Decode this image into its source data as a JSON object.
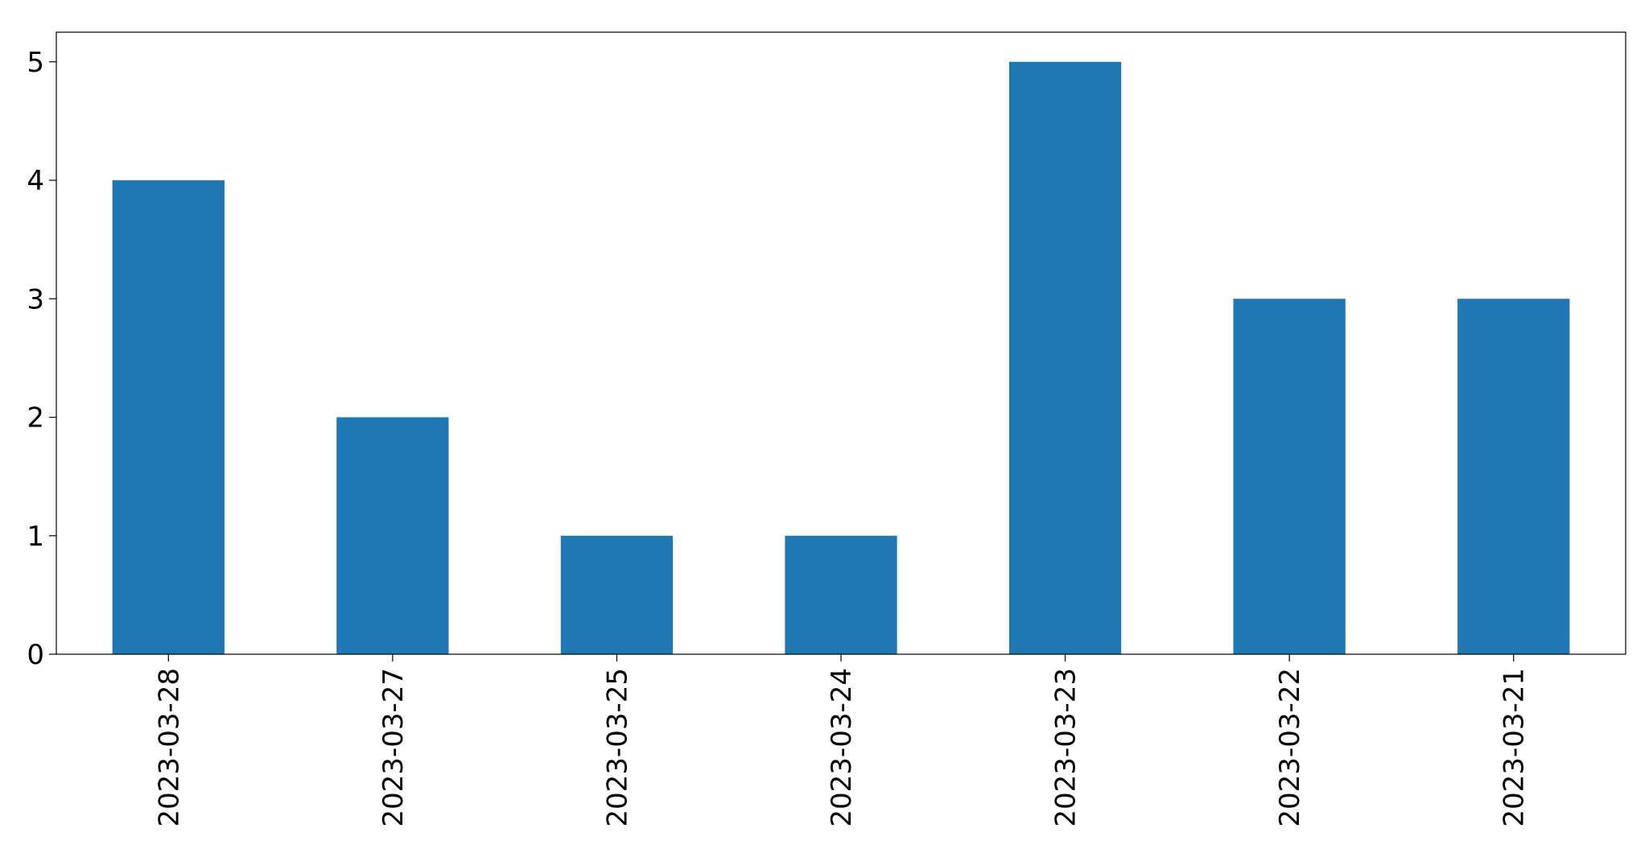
{
  "chart_data": {
    "type": "bar",
    "title": "",
    "xlabel": "",
    "ylabel": "",
    "categories": [
      "2023-03-28",
      "2023-03-27",
      "2023-03-25",
      "2023-03-24",
      "2023-03-23",
      "2023-03-22",
      "2023-03-21"
    ],
    "values": [
      4,
      2,
      1,
      1,
      5,
      3,
      3
    ],
    "ylim": [
      0,
      5.25
    ],
    "yticks": [
      "0",
      "1",
      "2",
      "3",
      "4",
      "5"
    ],
    "grid": false,
    "legend": "none",
    "bar_color": "#1f77b4"
  }
}
